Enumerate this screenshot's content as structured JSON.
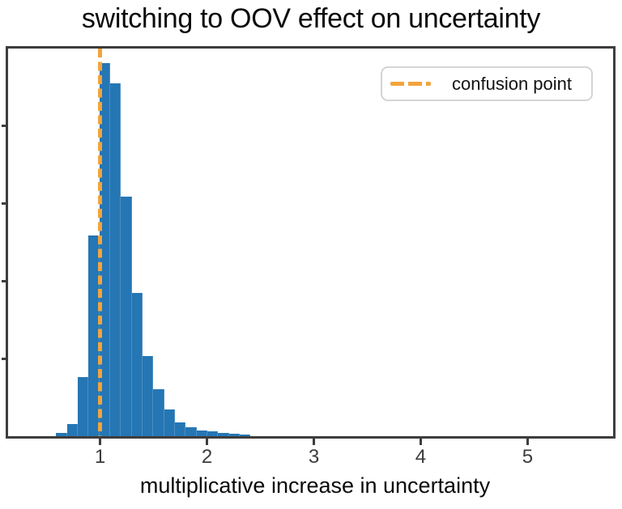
{
  "chart_data": {
    "type": "histogram",
    "title": "switching to OOV effect on uncertainty",
    "xlabel": "multiplicative increase in uncertainty",
    "ylabel": "",
    "bin_start": 0.59,
    "bin_width": 0.101,
    "counts": [
      21,
      81,
      380,
      1293,
      2408,
      2275,
      1543,
      922,
      517,
      302,
      173,
      90,
      60,
      38,
      29,
      21,
      18,
      12
    ],
    "xlim": [
      0.14,
      5.8
    ],
    "ylim": [
      0,
      2500
    ],
    "x_ticks": [
      1,
      2,
      3,
      4,
      5
    ],
    "x_tick_labels": [
      "1",
      "2",
      "3",
      "4",
      "5"
    ],
    "y_ticks": [
      500,
      1000,
      1500,
      2000
    ],
    "y_tick_labels": [],
    "grid": false,
    "legend": {
      "position": "upper right",
      "entries": [
        {
          "label": "confusion point",
          "style": "dashed-line",
          "color": "#f2a43c"
        }
      ]
    },
    "vline": {
      "x": 1.0,
      "label": "confusion point",
      "color": "#f2a43c",
      "style": "dashed"
    },
    "colors": {
      "bar": "#2576b4",
      "axis": "#3d3d3d",
      "tick_label": "#3c3c3c",
      "text": "#0a0a0a",
      "legend_border": "#d4d4d4",
      "background": "#ffffff"
    }
  }
}
